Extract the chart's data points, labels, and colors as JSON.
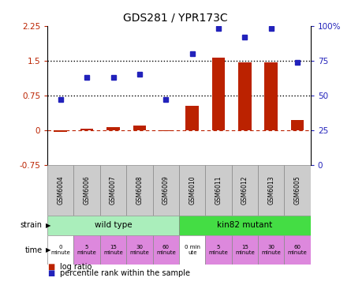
{
  "title": "GDS281 / YPR173C",
  "samples": [
    "GSM6004",
    "GSM6006",
    "GSM6007",
    "GSM6008",
    "GSM6009",
    "GSM6010",
    "GSM6011",
    "GSM6012",
    "GSM6013",
    "GSM6005"
  ],
  "log_ratio": [
    -0.04,
    0.03,
    0.07,
    0.09,
    -0.02,
    0.52,
    1.56,
    1.47,
    1.47,
    0.22
  ],
  "percentile": [
    47,
    63,
    63,
    65,
    47,
    80,
    98,
    92,
    98,
    74
  ],
  "ylim_left": [
    -0.75,
    2.25
  ],
  "ylim_right": [
    0,
    100
  ],
  "yticks_left": [
    -0.75,
    0,
    0.75,
    1.5,
    2.25
  ],
  "yticks_right": [
    0,
    25,
    50,
    75,
    100
  ],
  "hlines_dotted": [
    0.75,
    1.5
  ],
  "hline_dashed": 0.0,
  "bar_color": "#bb2200",
  "dot_color": "#2222bb",
  "strain_wt_label": "wild type",
  "strain_mut_label": "kin82 mutant",
  "strain_wt_color": "#aaeebb",
  "strain_mut_color": "#44dd44",
  "time_labels": [
    "0\nminute",
    "5\nminute",
    "15\nminute",
    "30\nminute",
    "60\nminute",
    "0 min\nute",
    "5\nminute",
    "15\nminute",
    "30\nminute",
    "60\nminute"
  ],
  "time_colors": [
    "#ffffff",
    "#dd88dd",
    "#dd88dd",
    "#dd88dd",
    "#dd88dd",
    "#ffffff",
    "#dd88dd",
    "#dd88dd",
    "#dd88dd",
    "#dd88dd"
  ],
  "legend_bar_label": "log ratio",
  "legend_dot_label": "percentile rank within the sample",
  "strain_label": "strain",
  "time_label": "time",
  "tick_color_left": "#bb2200",
  "tick_color_right": "#2222bb",
  "sample_bg_color": "#cccccc",
  "sample_bg_wt": "#cccccc",
  "sample_bg_mut": "#cccccc"
}
